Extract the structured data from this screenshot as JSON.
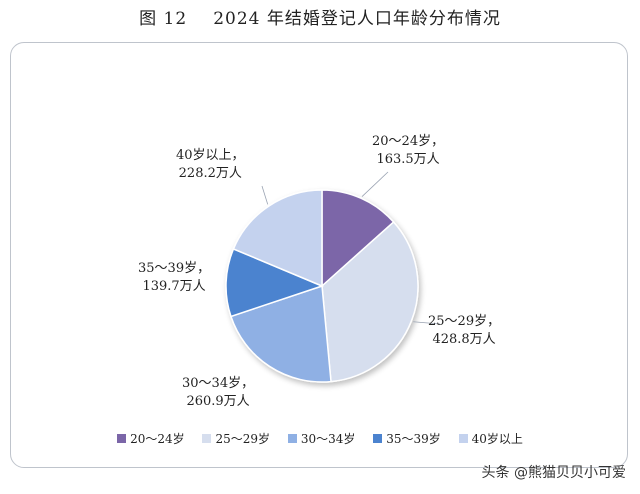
{
  "figure": {
    "number": "图 12",
    "title": "2024 年结婚登记人口年龄分布情况"
  },
  "chart_data": {
    "type": "pie",
    "title": "2024 年结婚登记人口年龄分布情况",
    "unit": "万人",
    "categories": [
      "20～24岁",
      "25～29岁",
      "30～34岁",
      "35～39岁",
      "40岁以上"
    ],
    "values": [
      163.5,
      428.8,
      260.9,
      139.7,
      228.2
    ],
    "colors": [
      "#7b66a8",
      "#d6deee",
      "#8fb0e4",
      "#4b83cf",
      "#c4d2ee"
    ],
    "labels": [
      {
        "line1": "20～24岁，",
        "line2": "163.5万人"
      },
      {
        "line1": "25～29岁，",
        "line2": "428.8万人"
      },
      {
        "line1": "30～34岁，",
        "line2": "260.9万人"
      },
      {
        "line1": "35～39岁，",
        "line2": "139.7万人"
      },
      {
        "line1": "40岁以上，",
        "line2": "228.2万人"
      }
    ],
    "legend_position": "bottom"
  },
  "watermark": "头条 @熊猫贝贝小可爱"
}
